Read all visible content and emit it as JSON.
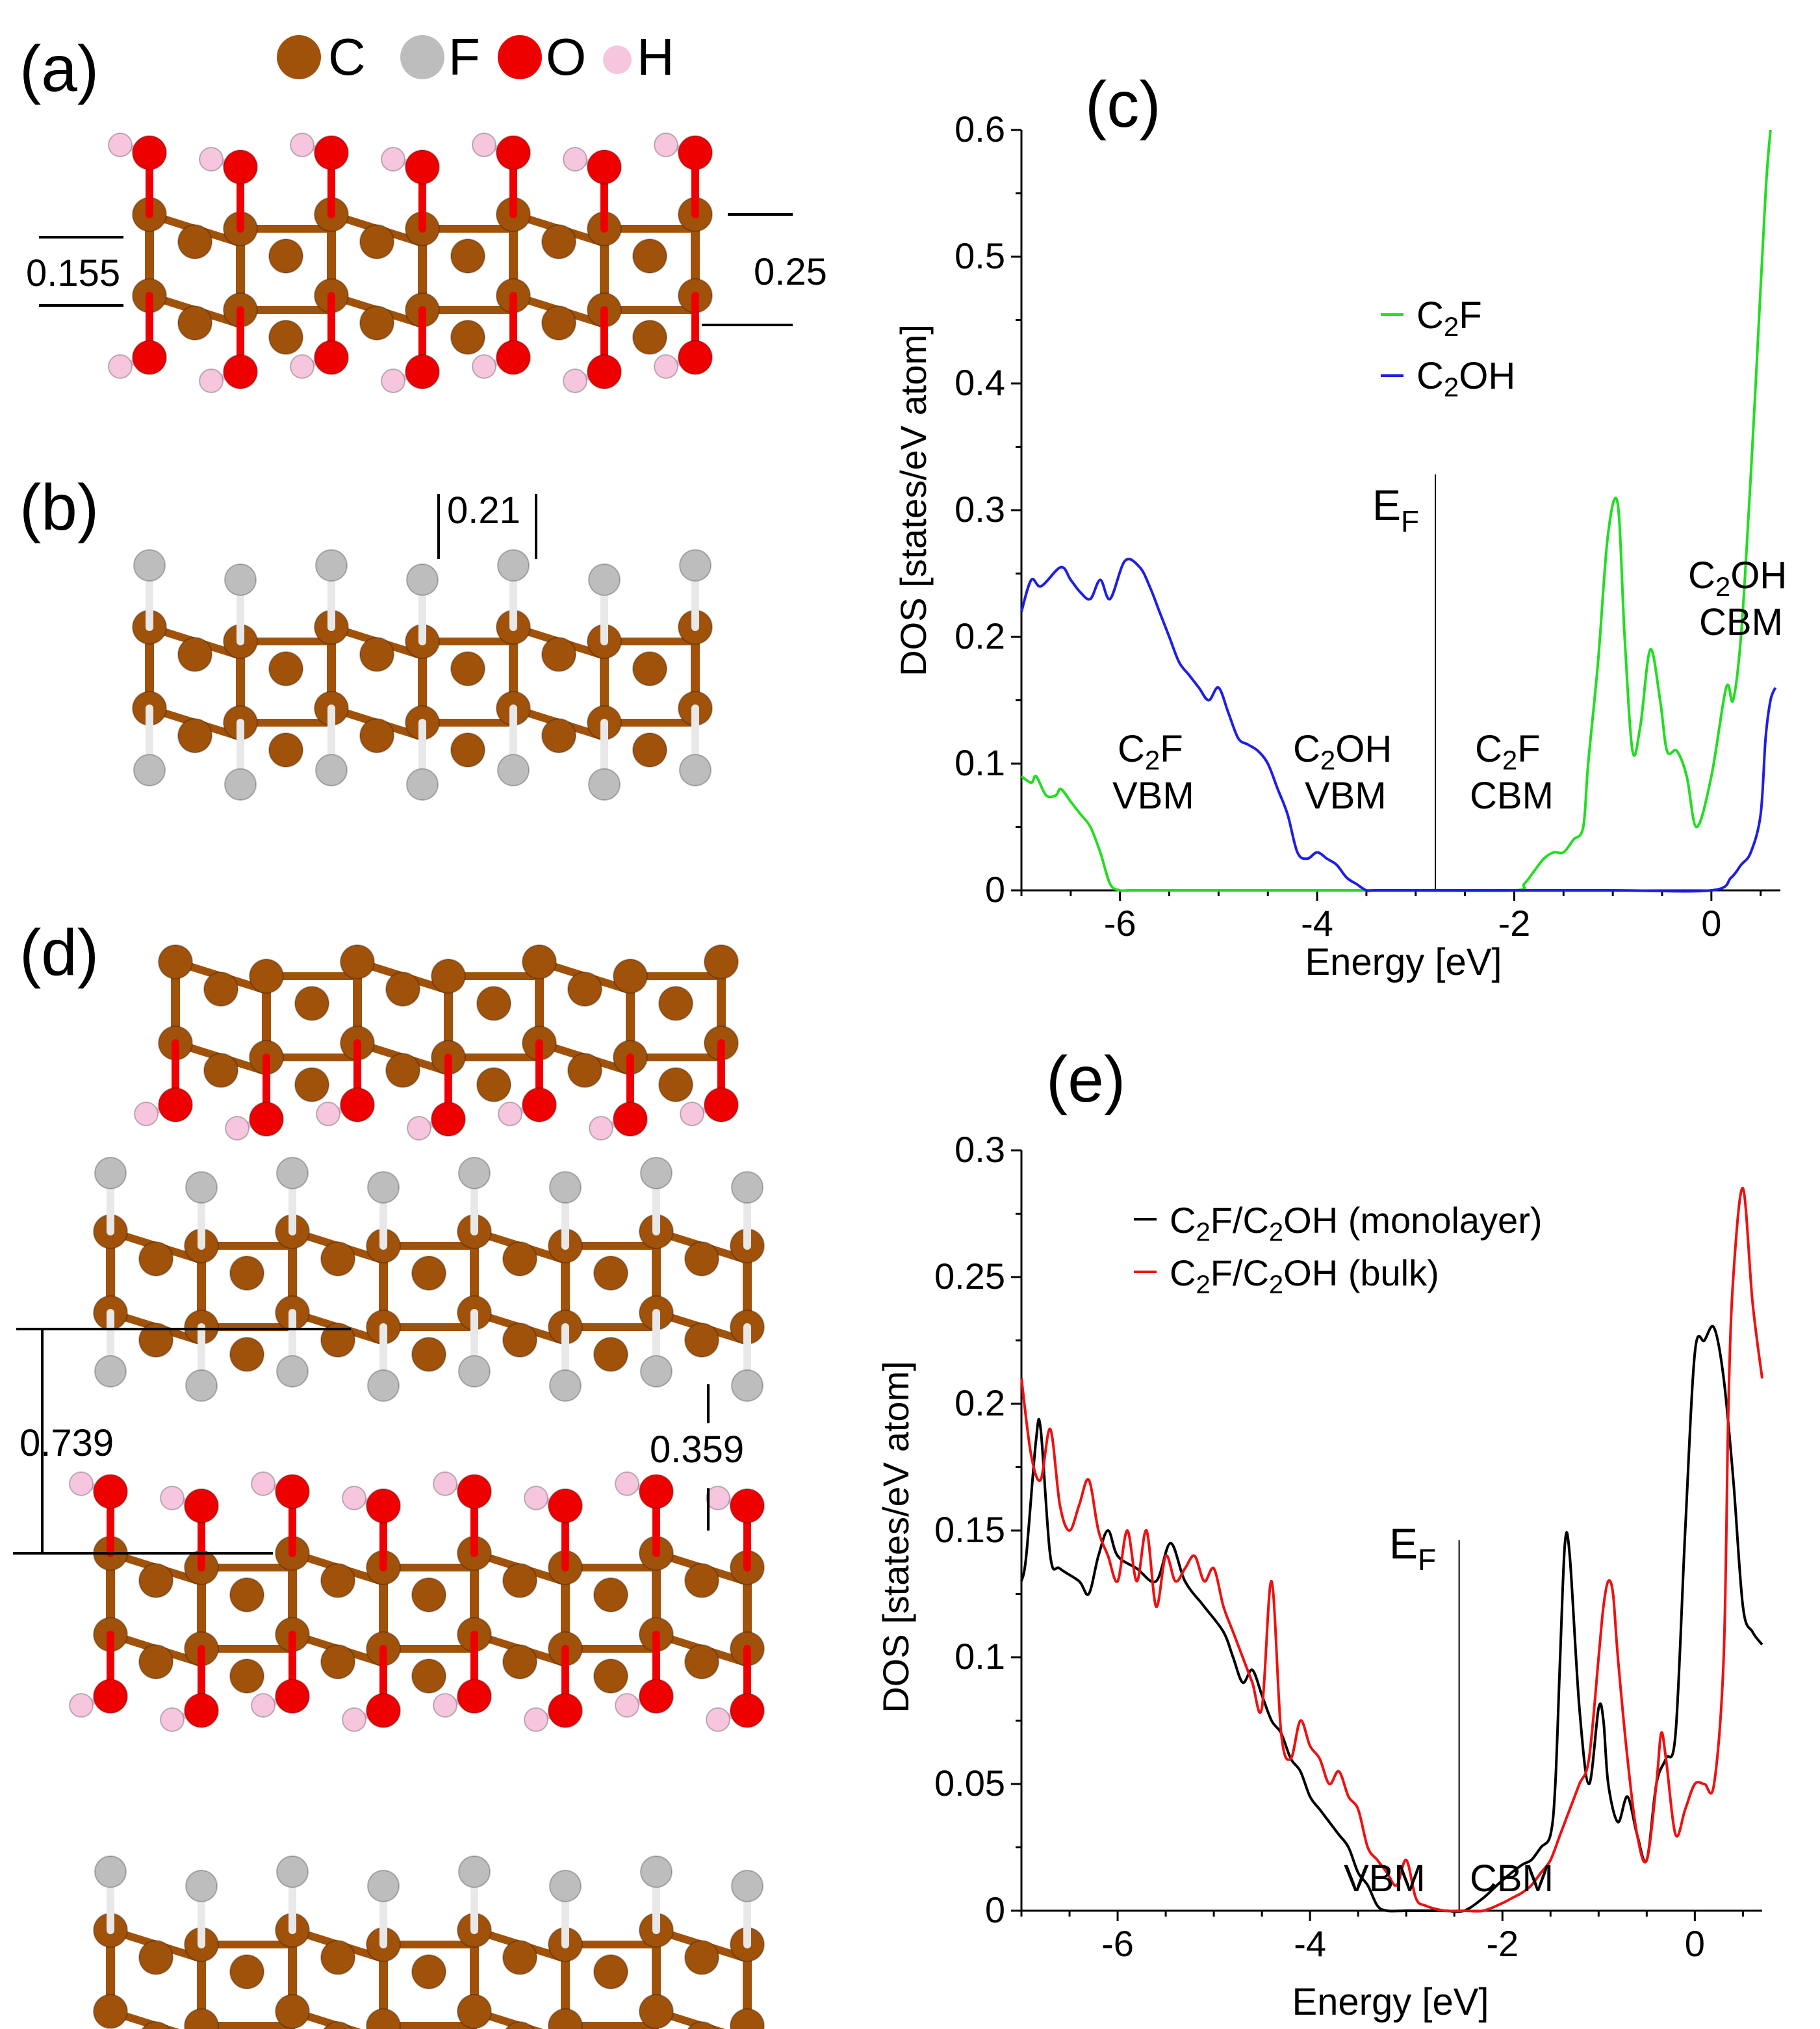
{
  "panels": {
    "a": "(a)",
    "b": "(b)",
    "c": "(c)",
    "d": "(d)",
    "e": "(e)"
  },
  "colors": {
    "carbon": "#A0520A",
    "fluorine": "#BDBDBD",
    "oxygen": "#EE0000",
    "hydrogen": "#F5C6DE",
    "c2f": "#22DD22",
    "c2oh": "#1E1EE6",
    "monolayer": "#000000",
    "bulk": "#EE1111"
  },
  "legend_atoms": {
    "c": "C",
    "f": "F",
    "o": "O",
    "h": "H"
  },
  "structure_a": {
    "d1": "0.155",
    "d2": "0.25"
  },
  "structure_b": {
    "d1": "0.21"
  },
  "structure_d": {
    "d1": "0.739",
    "d2": "0.359"
  },
  "chart_data": [
    {
      "id": "c",
      "type": "line",
      "title": "(c)",
      "xlabel": "Energy [eV]",
      "ylabel": "DOS [states/eV atom]",
      "xlim": [
        -7,
        0.7
      ],
      "ylim": [
        0,
        0.6
      ],
      "xticks": [
        -6,
        -4,
        -2,
        0
      ],
      "xtick_labels": [
        "-6",
        "-4",
        "-2",
        "0"
      ],
      "yticks": [
        0,
        0.1,
        0.2,
        0.3,
        0.4,
        0.5,
        0.6
      ],
      "ytick_labels": [
        "0",
        "0.1",
        "0.2",
        "0.3",
        "0.4",
        "0.5",
        "0.6"
      ],
      "fermi": {
        "x": -2.8,
        "label": "E",
        "sub": "F"
      },
      "series": [
        {
          "name": "C2F",
          "label_main": "C",
          "label_sub": "2",
          "label_rest": "F",
          "color": "#22DD22",
          "x": [
            -7.0,
            -6.9,
            -6.85,
            -6.75,
            -6.65,
            -6.6,
            -6.5,
            -6.45,
            -6.4,
            -6.3,
            -6.2,
            -6.1,
            -6.0,
            -5.9,
            -5.5,
            -5.0,
            -4.0,
            -3.0,
            -2.0,
            -1.9,
            -1.8,
            -1.7,
            -1.6,
            -1.5,
            -1.4,
            -1.3,
            -1.25,
            -1.15,
            -1.05,
            -0.95,
            -0.88,
            -0.8,
            -0.72,
            -0.62,
            -0.52,
            -0.45,
            -0.35,
            -0.25,
            -0.15,
            0.0,
            0.15,
            0.22,
            0.3,
            0.38,
            0.45,
            0.55,
            0.6
          ],
          "y": [
            0.09,
            0.085,
            0.09,
            0.075,
            0.075,
            0.08,
            0.07,
            0.065,
            0.06,
            0.05,
            0.03,
            0.005,
            0.0,
            0.0,
            0.0,
            0.0,
            0.0,
            0.0,
            0.0,
            0.005,
            0.015,
            0.025,
            0.03,
            0.03,
            0.04,
            0.05,
            0.1,
            0.18,
            0.28,
            0.305,
            0.2,
            0.11,
            0.13,
            0.19,
            0.15,
            0.11,
            0.11,
            0.09,
            0.05,
            0.09,
            0.16,
            0.15,
            0.2,
            0.3,
            0.4,
            0.55,
            0.6
          ]
        },
        {
          "name": "C2OH",
          "label_main": "C",
          "label_sub": "2",
          "label_rest": "OH",
          "color": "#1E1EE6",
          "x": [
            -7.0,
            -6.9,
            -6.8,
            -6.6,
            -6.5,
            -6.4,
            -6.3,
            -6.2,
            -6.1,
            -5.95,
            -5.8,
            -5.7,
            -5.6,
            -5.5,
            -5.4,
            -5.3,
            -5.2,
            -5.1,
            -5.0,
            -4.9,
            -4.8,
            -4.7,
            -4.6,
            -4.5,
            -4.4,
            -4.3,
            -4.2,
            -4.1,
            -4.0,
            -3.9,
            -3.8,
            -3.7,
            -3.6,
            -3.5,
            -3.4,
            -3.0,
            -2.0,
            -1.0,
            0.0,
            0.2,
            0.3,
            0.4,
            0.5,
            0.55,
            0.6,
            0.65
          ],
          "y": [
            0.22,
            0.245,
            0.24,
            0.255,
            0.245,
            0.235,
            0.23,
            0.245,
            0.23,
            0.26,
            0.255,
            0.24,
            0.22,
            0.2,
            0.18,
            0.17,
            0.16,
            0.15,
            0.16,
            0.14,
            0.12,
            0.115,
            0.11,
            0.1,
            0.08,
            0.06,
            0.03,
            0.025,
            0.03,
            0.025,
            0.02,
            0.01,
            0.005,
            0.0,
            0.0,
            0.0,
            0.0,
            0.0,
            0.0,
            0.01,
            0.02,
            0.03,
            0.06,
            0.12,
            0.15,
            0.16
          ]
        }
      ],
      "annotations": [
        {
          "main": "C",
          "sub": "2",
          "rest": "F",
          "line2": "VBM",
          "x": -5.7,
          "y": 0.105
        },
        {
          "main": "C",
          "sub": "2",
          "rest": "OH",
          "line2": "VBM",
          "x": -3.8,
          "y": 0.105
        },
        {
          "main": "C",
          "sub": "2",
          "rest": "F",
          "line2": "CBM",
          "x": -1.85,
          "y": 0.105
        },
        {
          "main": "C",
          "sub": "2",
          "rest": "OH",
          "line2": "CBM",
          "x": 0.3,
          "y": 0.245
        }
      ],
      "legend": "upper-middle"
    },
    {
      "id": "e",
      "type": "line",
      "title": "(e)",
      "xlabel": "Energy [eV]",
      "ylabel": "DOS [states/eV atom]",
      "xlim": [
        -7,
        0.7
      ],
      "ylim": [
        0,
        0.3
      ],
      "xticks": [
        -6,
        -4,
        -2,
        0
      ],
      "xtick_labels": [
        "-6",
        "-4",
        "-2",
        "0"
      ],
      "yticks": [
        0,
        0.05,
        0.1,
        0.15,
        0.2,
        0.25,
        0.3
      ],
      "ytick_labels": [
        "0",
        "0.05",
        "0.1",
        "0.15",
        "0.2",
        "0.25",
        "0.3"
      ],
      "fermi": {
        "x": -2.45,
        "label": "E",
        "sub": "F"
      },
      "series": [
        {
          "name": "C2F/C2OH (monolayer)",
          "label_main": "C",
          "label_sub": "2",
          "label_rest": "F/C",
          "label_sub2": "2",
          "label_rest2": "OH (monolayer)",
          "color": "#000000",
          "x": [
            -7.0,
            -6.95,
            -6.85,
            -6.8,
            -6.7,
            -6.6,
            -6.4,
            -6.3,
            -6.2,
            -6.1,
            -6.0,
            -5.8,
            -5.6,
            -5.45,
            -5.3,
            -5.1,
            -4.9,
            -4.8,
            -4.7,
            -4.6,
            -4.5,
            -4.4,
            -4.3,
            -4.2,
            -4.1,
            -4.0,
            -3.9,
            -3.8,
            -3.7,
            -3.6,
            -3.5,
            -3.4,
            -3.3,
            -3.2,
            -3.0,
            -2.8,
            -2.6,
            -2.4,
            -2.2,
            -2.0,
            -1.8,
            -1.7,
            -1.6,
            -1.5,
            -1.45,
            -1.4,
            -1.35,
            -1.3,
            -1.2,
            -1.1,
            -1.0,
            -0.95,
            -0.9,
            -0.8,
            -0.7,
            -0.6,
            -0.5,
            -0.4,
            -0.3,
            -0.2,
            -0.1,
            0.0,
            0.1,
            0.2,
            0.3,
            0.4,
            0.5,
            0.6,
            0.7
          ],
          "y": [
            0.13,
            0.14,
            0.185,
            0.19,
            0.14,
            0.135,
            0.13,
            0.125,
            0.14,
            0.15,
            0.14,
            0.135,
            0.13,
            0.145,
            0.13,
            0.12,
            0.11,
            0.1,
            0.09,
            0.095,
            0.085,
            0.075,
            0.07,
            0.06,
            0.055,
            0.045,
            0.04,
            0.035,
            0.03,
            0.025,
            0.015,
            0.01,
            0.002,
            0.0,
            0.0,
            0.0,
            0.0,
            0.0,
            0.005,
            0.012,
            0.018,
            0.02,
            0.025,
            0.03,
            0.05,
            0.1,
            0.145,
            0.14,
            0.08,
            0.05,
            0.08,
            0.075,
            0.05,
            0.035,
            0.045,
            0.03,
            0.02,
            0.05,
            0.06,
            0.07,
            0.15,
            0.22,
            0.225,
            0.23,
            0.21,
            0.17,
            0.12,
            0.11,
            0.105
          ]
        },
        {
          "name": "C2F/C2OH (bulk)",
          "label_main": "C",
          "label_sub": "2",
          "label_rest": "F/C",
          "label_sub2": "2",
          "label_rest2": "OH (bulk)",
          "color": "#EE1111",
          "x": [
            -7.0,
            -6.9,
            -6.8,
            -6.7,
            -6.6,
            -6.5,
            -6.4,
            -6.3,
            -6.2,
            -6.1,
            -6.0,
            -5.9,
            -5.8,
            -5.7,
            -5.6,
            -5.5,
            -5.4,
            -5.3,
            -5.2,
            -5.1,
            -5.0,
            -4.9,
            -4.8,
            -4.7,
            -4.6,
            -4.5,
            -4.4,
            -4.3,
            -4.2,
            -4.1,
            -4.0,
            -3.9,
            -3.8,
            -3.7,
            -3.6,
            -3.5,
            -3.4,
            -3.3,
            -3.2,
            -3.1,
            -3.0,
            -2.9,
            -2.8,
            -2.6,
            -2.4,
            -2.2,
            -2.0,
            -1.9,
            -1.8,
            -1.7,
            -1.6,
            -1.5,
            -1.4,
            -1.3,
            -1.2,
            -1.1,
            -1.0,
            -0.95,
            -0.9,
            -0.85,
            -0.8,
            -0.7,
            -0.6,
            -0.5,
            -0.4,
            -0.35,
            -0.3,
            -0.2,
            -0.1,
            0.0,
            0.1,
            0.2,
            0.3,
            0.35,
            0.4,
            0.5,
            0.6,
            0.7
          ],
          "y": [
            0.21,
            0.18,
            0.17,
            0.19,
            0.16,
            0.15,
            0.16,
            0.17,
            0.15,
            0.14,
            0.13,
            0.15,
            0.13,
            0.15,
            0.12,
            0.14,
            0.13,
            0.135,
            0.14,
            0.13,
            0.135,
            0.12,
            0.11,
            0.1,
            0.09,
            0.08,
            0.13,
            0.07,
            0.06,
            0.075,
            0.065,
            0.06,
            0.05,
            0.055,
            0.045,
            0.04,
            0.025,
            0.02,
            0.015,
            0.01,
            0.02,
            0.005,
            0.002,
            0.0,
            0.0,
            0.0,
            0.003,
            0.005,
            0.007,
            0.01,
            0.015,
            0.02,
            0.03,
            0.04,
            0.05,
            0.06,
            0.1,
            0.12,
            0.13,
            0.125,
            0.1,
            0.06,
            0.03,
            0.02,
            0.05,
            0.07,
            0.06,
            0.03,
            0.04,
            0.05,
            0.05,
            0.05,
            0.1,
            0.2,
            0.25,
            0.285,
            0.24,
            0.21
          ]
        }
      ],
      "annotations": [
        {
          "line2": "VBM",
          "x": -3.1,
          "y": 0.036
        },
        {
          "line2": "CBM",
          "x": -1.85,
          "y": 0.036
        }
      ],
      "legend": "top-right"
    }
  ]
}
